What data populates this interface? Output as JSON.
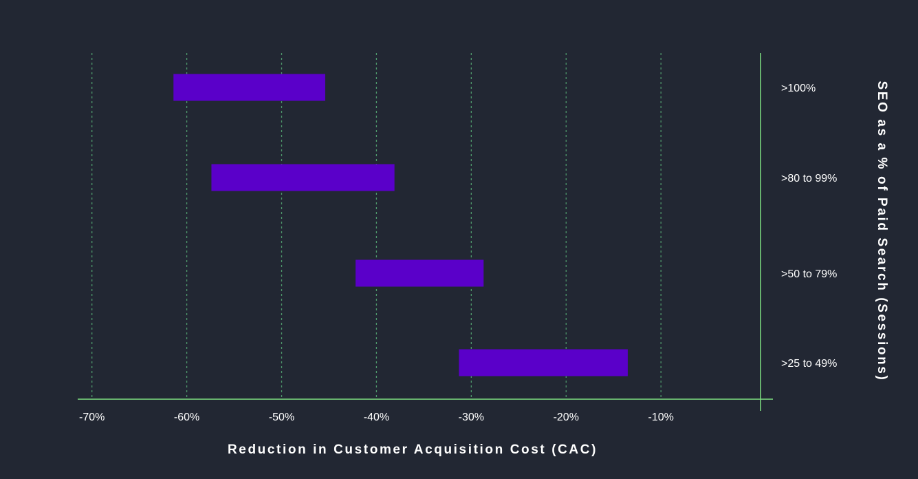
{
  "chart_data": {
    "type": "floating-bar",
    "x_label": "Reduction in Customer Acquisition Cost (CAC)",
    "y_label": "SEO as a % of Paid Search (Sessions)",
    "categories": [
      ">100%",
      ">80 to 99%",
      ">50 to 79%",
      ">25 to 49%"
    ],
    "low": [
      -61.4,
      -57.4,
      -42.2,
      -31.3
    ],
    "high": [
      -45.4,
      -38.1,
      -28.7,
      -13.5
    ],
    "color": "#5a00c9",
    "xlim": [
      -71.5,
      0.5
    ],
    "xticks": [
      {
        "value": -70,
        "label": "-70%"
      },
      {
        "value": -60,
        "label": "-60%"
      },
      {
        "value": -50,
        "label": "-50%"
      },
      {
        "value": -40,
        "label": "-40%"
      },
      {
        "value": -30,
        "label": "-30%"
      },
      {
        "value": -20,
        "label": "-20%"
      },
      {
        "value": -10,
        "label": "-10%"
      }
    ],
    "grid": true
  }
}
